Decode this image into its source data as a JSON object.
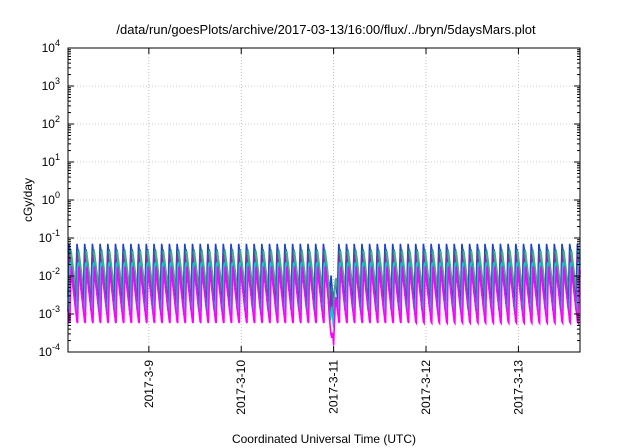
{
  "chart_data": {
    "type": "line",
    "title": "/data/run/goesPlots/archive/2017-03-13/16:00/flux/../bryn/5daysMars.plot",
    "xlabel": "Coordinated Universal Time (UTC)",
    "ylabel": "cGy/day",
    "y_scale": "log",
    "ylim": [
      0.0001,
      10000
    ],
    "y_ticks": [
      {
        "value": 0.0001,
        "base": "10",
        "exp": "-4"
      },
      {
        "value": 0.001,
        "base": "10",
        "exp": "-3"
      },
      {
        "value": 0.01,
        "base": "10",
        "exp": "-2"
      },
      {
        "value": 0.1,
        "base": "10",
        "exp": "-1"
      },
      {
        "value": 1,
        "base": "10",
        "exp": "0"
      },
      {
        "value": 10,
        "base": "10",
        "exp": "1"
      },
      {
        "value": 100,
        "base": "10",
        "exp": "2"
      },
      {
        "value": 1000,
        "base": "10",
        "exp": "3"
      },
      {
        "value": 10000,
        "base": "10",
        "exp": "4"
      }
    ],
    "xlim": [
      "2017-03-08T03:00",
      "2017-03-13T16:00"
    ],
    "x_ticks": [
      {
        "value": "2017-03-09",
        "label": "2017-3-9"
      },
      {
        "value": "2017-03-10",
        "label": "2017-3-10"
      },
      {
        "value": "2017-03-11",
        "label": "2017-3-11"
      },
      {
        "value": "2017-03-12",
        "label": "2017-3-12"
      },
      {
        "value": "2017-03-13",
        "label": "2017-3-13"
      }
    ],
    "grid": true,
    "sawtooth_period_hours": 2,
    "dip_time": "2017-03-11T00:00",
    "series": [
      {
        "color": "#1f3fcf",
        "peak": 0.075,
        "trough": 0.0028,
        "dip_min": 0.0022
      },
      {
        "color": "#2a7f9f",
        "peak": 0.065,
        "trough": 0.0025,
        "dip_min": 0.0016
      },
      {
        "color": "#3fb37f",
        "peak": 0.05,
        "trough": 0.0018,
        "dip_min": 0.0009
      },
      {
        "color": "#7a2fbf",
        "peak": 0.04,
        "trough": 0.0012,
        "dip_min": 0.0006
      },
      {
        "color": "#00d0d0",
        "peak": 0.03,
        "trough": 0.0008,
        "dip_min": 0.00045
      },
      {
        "color": "#ff00ff",
        "peak": 0.02,
        "trough": 0.00045,
        "dip_min": 0.00015
      }
    ]
  }
}
